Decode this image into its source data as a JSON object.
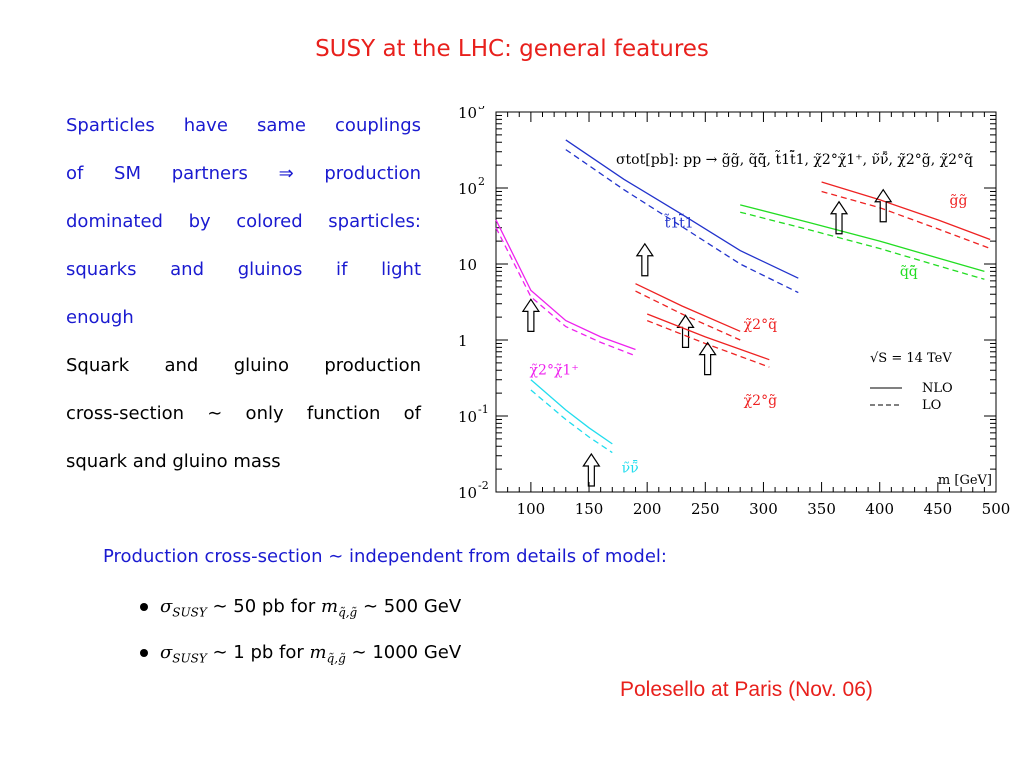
{
  "slide": {
    "title": "SUSY at the LHC: general features",
    "left_lines_blue": [
      "Sparticles have same couplings",
      "of SM partners ⇒ production",
      "dominated by colored sparticles:",
      "squarks and gluinos if light",
      "enough"
    ],
    "left_lines_black": [
      "Squark and gluino production",
      "cross-section ∼ only function of",
      "squark and gluino mass"
    ],
    "bottom_heading": "Production cross-section ∼ independent from details of model:",
    "bullet1": {
      "sigma": "σ",
      "sub": "SUSY",
      "rel": " ∼ 50 pb for ",
      "m": "m",
      "msub": "q̃,g̃",
      "val": " ∼ 500 GeV"
    },
    "bullet2": {
      "sigma": "σ",
      "sub": "SUSY",
      "rel": " ∼ 1 pb for ",
      "m": "m",
      "msub": "q̃,g̃",
      "val": " ∼ 1000 GeV"
    },
    "credit": "Polesello at Paris (Nov. 06)"
  },
  "colors": {
    "title": "#e8201c",
    "blue_text": "#1a1ad0",
    "blue": "#2233cc",
    "magenta": "#ee22ee",
    "cyan": "#22ddee",
    "red": "#ee2222",
    "green": "#22dd22"
  },
  "chart_data": {
    "type": "line",
    "title": "σtot[pb]: pp → g̃g̃, q̃q̃̄, t̃1t̃̄1, χ̃2°χ̃1⁺, ν̃ν̃̄, χ̃2°g̃, χ̃2°q̃",
    "xlabel": "m [GeV]",
    "ylabel": "",
    "xlim": [
      70,
      500
    ],
    "ylim_log10": [
      -2,
      3
    ],
    "y_scale": "log",
    "x_ticks": [
      100,
      150,
      200,
      250,
      300,
      350,
      400,
      450,
      500
    ],
    "y_ticks": [
      {
        "base": "10",
        "exp": "3",
        "value": 1000
      },
      {
        "base": "10",
        "exp": "2",
        "value": 100
      },
      {
        "base": "10",
        "exp": "",
        "value": 10
      },
      {
        "base": "1",
        "exp": "",
        "value": 1
      },
      {
        "base": "10",
        "exp": "-1",
        "value": 0.1
      },
      {
        "base": "10",
        "exp": "-2",
        "value": 0.01
      }
    ],
    "energy_label": "√S = 14 TeV",
    "legend": [
      {
        "label": "NLO",
        "style": "solid"
      },
      {
        "label": "LO",
        "style": "dashed"
      }
    ],
    "series": [
      {
        "name": "t̃1t̃̄1",
        "color": "#2233cc",
        "nlo": [
          [
            130,
            430
          ],
          [
            180,
            130
          ],
          [
            230,
            45
          ],
          [
            280,
            15
          ],
          [
            330,
            6.5
          ]
        ],
        "lo": [
          [
            130,
            320
          ],
          [
            180,
            95
          ],
          [
            230,
            31
          ],
          [
            280,
            10
          ],
          [
            330,
            4.2
          ]
        ],
        "arrow": {
          "x": 198,
          "y": 7
        }
      },
      {
        "name": "χ̃2°χ̃1⁺",
        "color": "#ee22ee",
        "nlo": [
          [
            70,
            38
          ],
          [
            100,
            4.5
          ],
          [
            130,
            1.8
          ],
          [
            160,
            1.1
          ],
          [
            190,
            0.75
          ]
        ],
        "lo": [
          [
            70,
            30
          ],
          [
            100,
            3.7
          ],
          [
            130,
            1.5
          ],
          [
            160,
            0.93
          ],
          [
            190,
            0.62
          ]
        ],
        "arrow": {
          "x": 100,
          "y": 1.3
        }
      },
      {
        "name": "ν̃ν̃̄",
        "color": "#22ddee",
        "nlo": [
          [
            100,
            0.3
          ],
          [
            130,
            0.12
          ],
          [
            150,
            0.07
          ],
          [
            170,
            0.043
          ]
        ],
        "lo": [
          [
            100,
            0.22
          ],
          [
            130,
            0.09
          ],
          [
            150,
            0.053
          ],
          [
            170,
            0.033
          ]
        ],
        "arrow": {
          "x": 152,
          "y": 0.012
        }
      },
      {
        "name": "χ̃2°q̃",
        "color": "#ee2222",
        "nlo": [
          [
            190,
            5.5
          ],
          [
            230,
            2.8
          ],
          [
            280,
            1.3
          ]
        ],
        "lo": [
          [
            190,
            4.4
          ],
          [
            230,
            2.2
          ],
          [
            280,
            1.0
          ]
        ],
        "arrow": {
          "x": 233,
          "y": 0.8
        }
      },
      {
        "name": "χ̃2°g̃",
        "color": "#ee2222",
        "nlo": [
          [
            200,
            2.2
          ],
          [
            250,
            1.1
          ],
          [
            305,
            0.55
          ]
        ],
        "lo": [
          [
            200,
            1.8
          ],
          [
            250,
            0.9
          ],
          [
            305,
            0.44
          ]
        ],
        "arrow": {
          "x": 252,
          "y": 0.35
        }
      },
      {
        "name": "q̃q̃̄",
        "color": "#22dd22",
        "nlo": [
          [
            280,
            60
          ],
          [
            340,
            35
          ],
          [
            400,
            20
          ],
          [
            450,
            12
          ],
          [
            490,
            8
          ]
        ],
        "lo": [
          [
            280,
            48
          ],
          [
            340,
            28
          ],
          [
            400,
            16
          ],
          [
            450,
            9.5
          ],
          [
            490,
            6.3
          ]
        ],
        "arrow": {
          "x": 365,
          "y": 25
        }
      },
      {
        "name": "g̃g̃",
        "color": "#ee2222",
        "nlo": [
          [
            350,
            120
          ],
          [
            400,
            70
          ],
          [
            450,
            38
          ],
          [
            495,
            21
          ]
        ],
        "lo": [
          [
            350,
            90
          ],
          [
            400,
            55
          ],
          [
            450,
            29
          ],
          [
            495,
            16
          ]
        ],
        "arrow": {
          "x": 403,
          "y": 36
        }
      }
    ]
  }
}
